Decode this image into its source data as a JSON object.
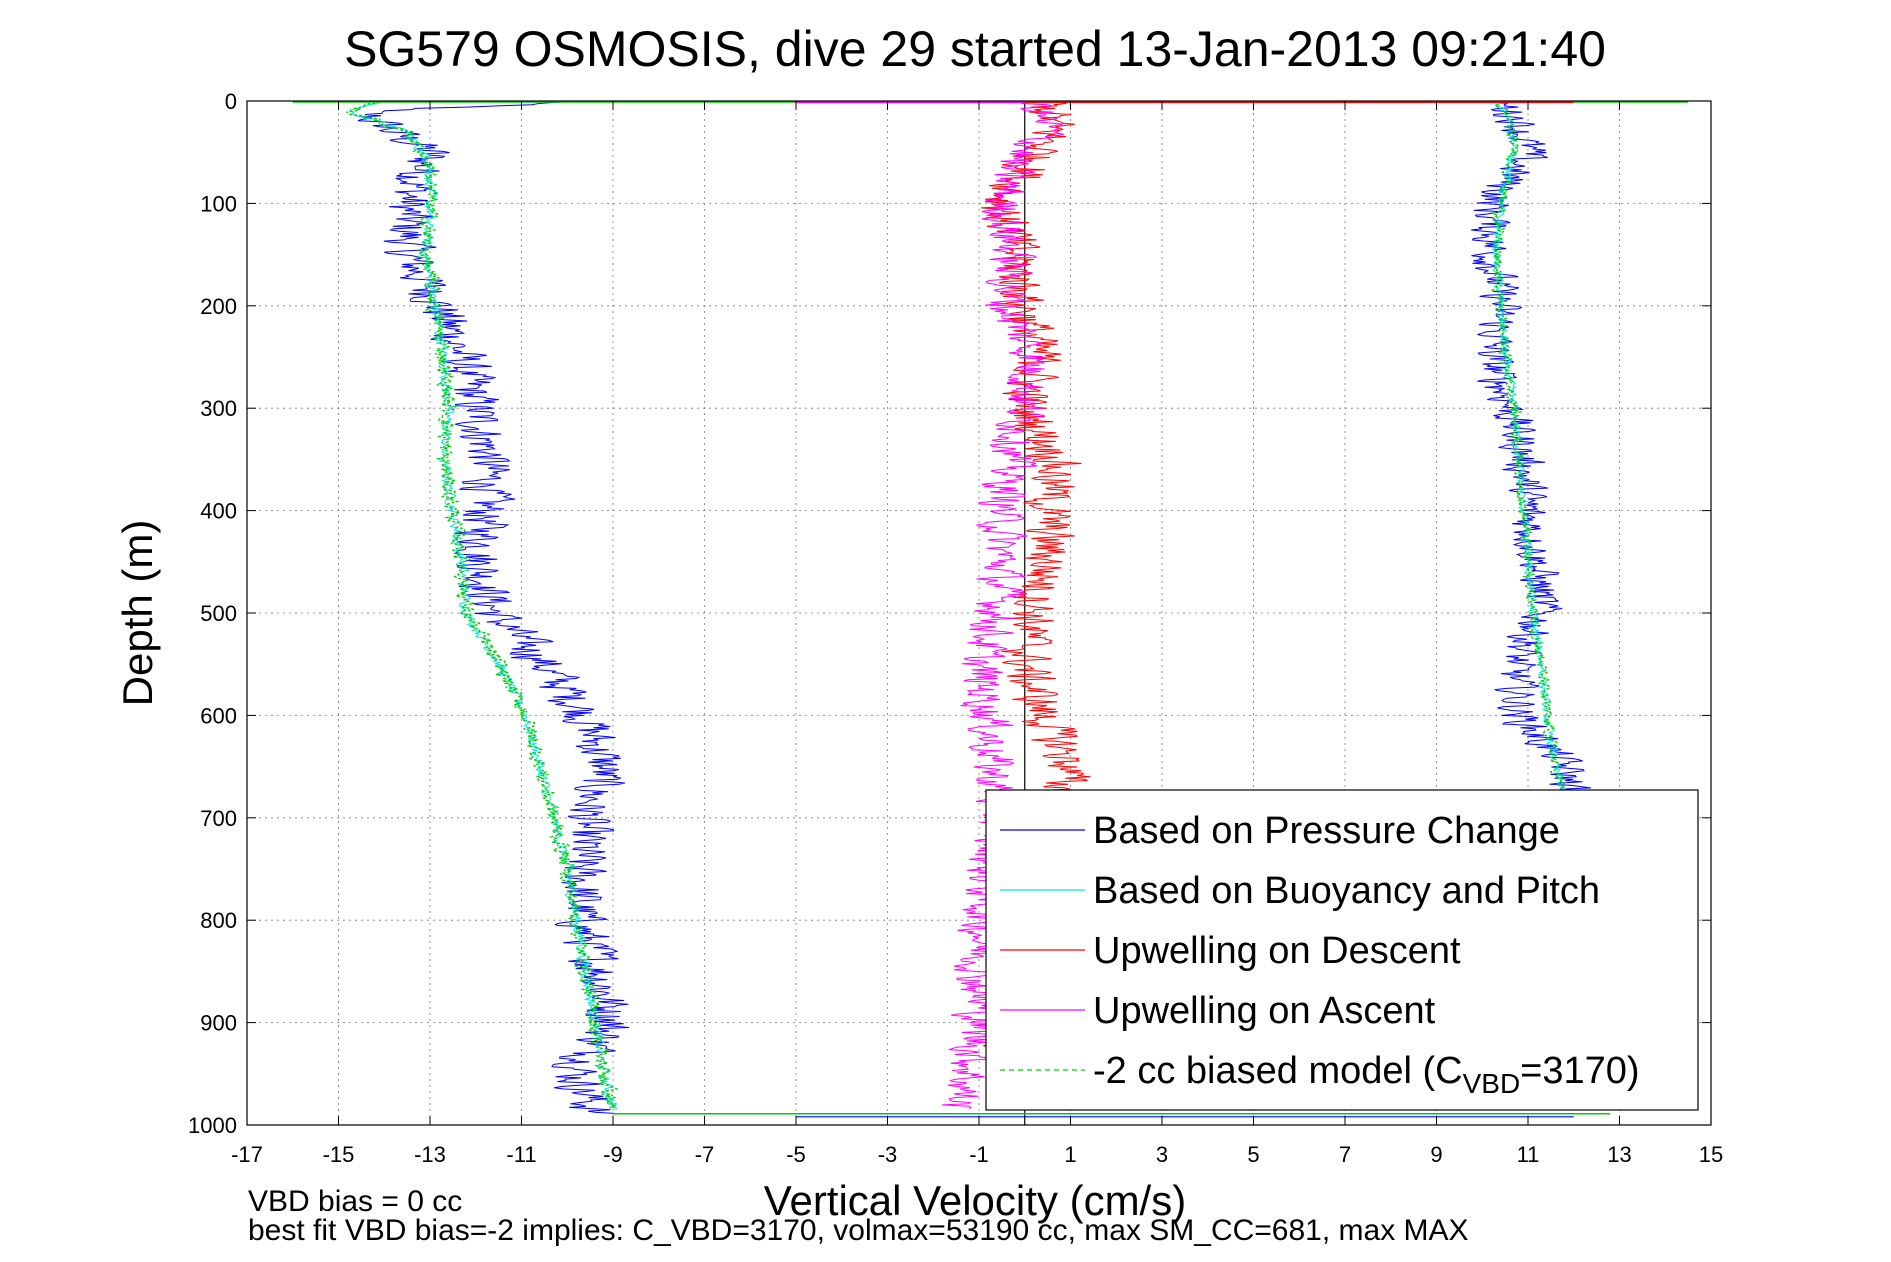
{
  "figure": {
    "title": "SG579 OSMOSIS, dive 29 started 13-Jan-2013 09:21:40",
    "notes": [
      "VBD bias = 0 cc",
      "best fit VBD bias=-2 implies: C_VBD=3170, volmax=53190 cc, max SM_CC=681, max MAX"
    ]
  },
  "chart_data": {
    "type": "line",
    "xlabel": "Vertical Velocity (cm/s)",
    "ylabel": "Depth (m)",
    "xlim": [
      -17,
      15
    ],
    "ylim": [
      0,
      1000
    ],
    "y_reversed": true,
    "xticks": [
      -17,
      -15,
      -13,
      -11,
      -9,
      -7,
      -5,
      -3,
      -1,
      1,
      3,
      5,
      7,
      9,
      11,
      13,
      15
    ],
    "yticks": [
      0,
      100,
      200,
      300,
      400,
      500,
      600,
      700,
      800,
      900,
      1000
    ],
    "grid": true,
    "legend_position": "bottom-right",
    "legend": {
      "entries": [
        {
          "label": "Based on Pressure Change",
          "color": "#0000ff",
          "dash": ""
        },
        {
          "label": "Based on Buoyancy and Pitch",
          "color": "#00e5e5",
          "dash": ""
        },
        {
          "label": "Upwelling on Descent",
          "color": "#ff0000",
          "dash": ""
        },
        {
          "label": "Upwelling on Ascent",
          "color": "#ff00ff",
          "dash": ""
        },
        {
          "label_prefix": "-2 cc biased model (C",
          "label_sub": "VBD",
          "label_suffix": "=3170)",
          "color": "#00cc00",
          "dash": "5,4"
        }
      ]
    },
    "series": [
      {
        "name": "Based on Pressure Change",
        "segment": "descent",
        "color": "#0000ff",
        "noise": 0.55,
        "depth": [
          0,
          10,
          25,
          50,
          100,
          150,
          200,
          250,
          300,
          350,
          400,
          450,
          500,
          550,
          600,
          650,
          700,
          750,
          800,
          850,
          900,
          950,
          990
        ],
        "velocity": [
          -9.5,
          -14.5,
          -14.0,
          -13.0,
          -13.5,
          -13.5,
          -12.8,
          -12.3,
          -12.0,
          -11.7,
          -11.8,
          -11.9,
          -11.6,
          -10.5,
          -9.6,
          -9.2,
          -9.6,
          -9.7,
          -9.7,
          -9.3,
          -9.0,
          -9.8,
          -9.4
        ]
      },
      {
        "name": "Based on Buoyancy and Pitch",
        "segment": "descent",
        "color": "#00e5e5",
        "noise": 0.12,
        "depth": [
          0,
          10,
          30,
          60,
          100,
          150,
          200,
          250,
          300,
          350,
          400,
          450,
          500,
          550,
          600,
          650,
          700,
          750,
          800,
          850,
          900,
          950,
          985
        ],
        "velocity": [
          -14.0,
          -14.8,
          -13.5,
          -13.0,
          -13.0,
          -13.1,
          -12.9,
          -12.7,
          -12.6,
          -12.7,
          -12.5,
          -12.3,
          -12.2,
          -11.5,
          -10.9,
          -10.6,
          -10.3,
          -10.0,
          -9.8,
          -9.6,
          -9.4,
          -9.2,
          -9.0
        ]
      },
      {
        "name": "Based on Pressure Change",
        "segment": "ascent",
        "color": "#0000ff",
        "noise": 0.45,
        "depth": [
          0,
          20,
          50,
          100,
          150,
          200,
          250,
          300,
          350,
          400,
          450,
          500,
          550,
          600,
          650,
          680
        ],
        "velocity": [
          10.4,
          10.8,
          11.0,
          10.2,
          10.2,
          10.4,
          10.2,
          10.6,
          10.9,
          11.0,
          11.2,
          11.3,
          10.7,
          10.8,
          11.8,
          12.0
        ]
      },
      {
        "name": "Based on Buoyancy and Pitch",
        "segment": "ascent",
        "color": "#00e5e5",
        "noise": 0.1,
        "depth": [
          0,
          20,
          50,
          100,
          150,
          200,
          250,
          300,
          350,
          400,
          450,
          500,
          550,
          600,
          650,
          680
        ],
        "velocity": [
          10.3,
          10.6,
          10.7,
          10.4,
          10.3,
          10.4,
          10.5,
          10.7,
          10.8,
          10.9,
          11.0,
          11.1,
          11.3,
          11.4,
          11.6,
          11.8
        ]
      },
      {
        "name": "Upwelling on Descent",
        "color": "#ff0000",
        "noise": 0.55,
        "depth": [
          0,
          30,
          60,
          100,
          150,
          200,
          250,
          300,
          350,
          400,
          450,
          500,
          550,
          600,
          650,
          700,
          750,
          800,
          850,
          900,
          950,
          985
        ],
        "velocity": [
          0.5,
          0.6,
          0.2,
          -0.5,
          -0.2,
          0.0,
          0.3,
          0.0,
          0.7,
          0.5,
          0.5,
          0.2,
          0.0,
          0.4,
          1.0,
          0.5,
          0.3,
          0.2,
          -0.1,
          -0.3,
          -0.2,
          0.0
        ]
      },
      {
        "name": "Upwelling on Ascent",
        "color": "#ff00ff",
        "noise": 0.5,
        "depth": [
          0,
          30,
          60,
          100,
          150,
          200,
          250,
          300,
          350,
          400,
          450,
          500,
          550,
          600,
          650,
          700,
          750,
          800,
          850,
          900,
          950,
          985
        ],
        "velocity": [
          0.2,
          0.5,
          -0.3,
          -0.5,
          -0.3,
          -0.4,
          0.2,
          0.0,
          -0.3,
          -0.5,
          -0.5,
          -0.6,
          -1.0,
          -0.8,
          -0.7,
          -0.6,
          -0.8,
          -0.9,
          -1.0,
          -1.0,
          -1.2,
          -1.5
        ]
      },
      {
        "name": "-2 cc biased model (C_VBD=3170)",
        "segment": "descent",
        "color": "#00cc00",
        "dash": true,
        "noise": 0.18,
        "depth": [
          0,
          10,
          30,
          60,
          100,
          150,
          200,
          250,
          300,
          350,
          400,
          450,
          500,
          550,
          600,
          650,
          700,
          750,
          800,
          850,
          900,
          950,
          985
        ],
        "velocity": [
          -14.0,
          -14.8,
          -13.5,
          -13.0,
          -13.0,
          -13.1,
          -12.9,
          -12.7,
          -12.6,
          -12.7,
          -12.5,
          -12.3,
          -12.2,
          -11.5,
          -10.9,
          -10.6,
          -10.3,
          -10.0,
          -9.8,
          -9.6,
          -9.4,
          -9.2,
          -9.0
        ]
      },
      {
        "name": "-2 cc biased model (C_VBD=3170)",
        "segment": "ascent",
        "color": "#00cc00",
        "dash": true,
        "noise": 0.12,
        "depth": [
          0,
          20,
          50,
          100,
          150,
          200,
          250,
          300,
          350,
          400,
          450,
          500,
          550,
          600,
          650,
          680
        ],
        "velocity": [
          10.3,
          10.6,
          10.7,
          10.4,
          10.3,
          10.4,
          10.5,
          10.7,
          10.8,
          10.9,
          11.0,
          11.1,
          11.3,
          11.4,
          11.6,
          11.8
        ]
      }
    ]
  }
}
